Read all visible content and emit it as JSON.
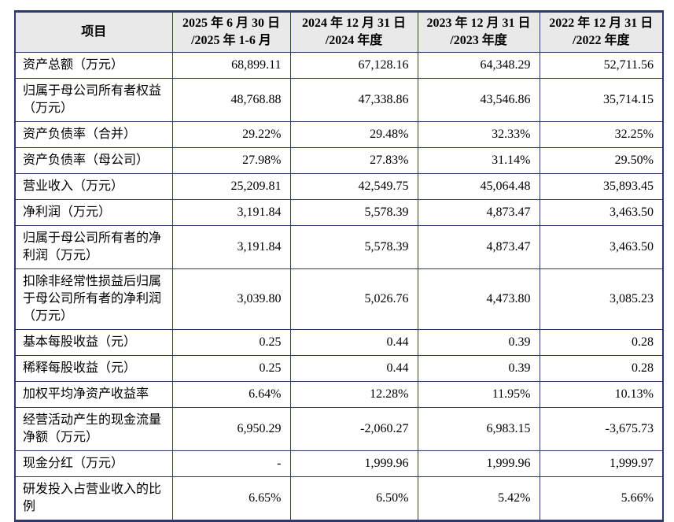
{
  "colors": {
    "border": "#2e3a6b",
    "header_bg": "#e9e9e9",
    "text": "#000000",
    "page_bg": "#ffffff"
  },
  "table": {
    "header": {
      "item_label": "项目",
      "period_columns": [
        {
          "line1": "2025 年 6 月 30 日",
          "line2": "/2025 年 1-6 月"
        },
        {
          "line1": "2024 年 12 月 31 日",
          "line2": "/2024 年度"
        },
        {
          "line1": "2023 年 12 月 31 日",
          "line2": "/2023 年度"
        },
        {
          "line1": "2022 年 12 月 31 日",
          "line2": "/2022 年度"
        }
      ]
    },
    "rows": [
      {
        "label": "资产总额（万元）",
        "values": [
          "68,899.11",
          "67,128.16",
          "64,348.29",
          "52,711.56"
        ]
      },
      {
        "label": "归属于母公司所有者权益（万元）",
        "values": [
          "48,768.88",
          "47,338.86",
          "43,546.86",
          "35,714.15"
        ]
      },
      {
        "label": "资产负债率（合并）",
        "values": [
          "29.22%",
          "29.48%",
          "32.33%",
          "32.25%"
        ]
      },
      {
        "label": "资产负债率（母公司）",
        "values": [
          "27.98%",
          "27.83%",
          "31.14%",
          "29.50%"
        ]
      },
      {
        "label": "营业收入（万元）",
        "values": [
          "25,209.81",
          "42,549.75",
          "45,064.48",
          "35,893.45"
        ]
      },
      {
        "label": "净利润（万元）",
        "values": [
          "3,191.84",
          "5,578.39",
          "4,873.47",
          "3,463.50"
        ]
      },
      {
        "label": "归属于母公司所有者的净利润（万元）",
        "values": [
          "3,191.84",
          "5,578.39",
          "4,873.47",
          "3,463.50"
        ]
      },
      {
        "label": "扣除非经常性损益后归属于母公司所有者的净利润（万元）",
        "values": [
          "3,039.80",
          "5,026.76",
          "4,473.80",
          "3,085.23"
        ]
      },
      {
        "label": "基本每股收益（元）",
        "values": [
          "0.25",
          "0.44",
          "0.39",
          "0.28"
        ]
      },
      {
        "label": "稀释每股收益（元）",
        "values": [
          "0.25",
          "0.44",
          "0.39",
          "0.28"
        ]
      },
      {
        "label": "加权平均净资产收益率",
        "values": [
          "6.64%",
          "12.28%",
          "11.95%",
          "10.13%"
        ]
      },
      {
        "label": "经营活动产生的现金流量净额（万元）",
        "values": [
          "6,950.29",
          "-2,060.27",
          "6,983.15",
          "-3,675.73"
        ]
      },
      {
        "label": "现金分红（万元）",
        "values": [
          "-",
          "1,999.96",
          "1,999.96",
          "1,999.97"
        ]
      },
      {
        "label": "研发投入占营业收入的比例",
        "values": [
          "6.65%",
          "6.50%",
          "5.42%",
          "5.66%"
        ]
      }
    ]
  }
}
